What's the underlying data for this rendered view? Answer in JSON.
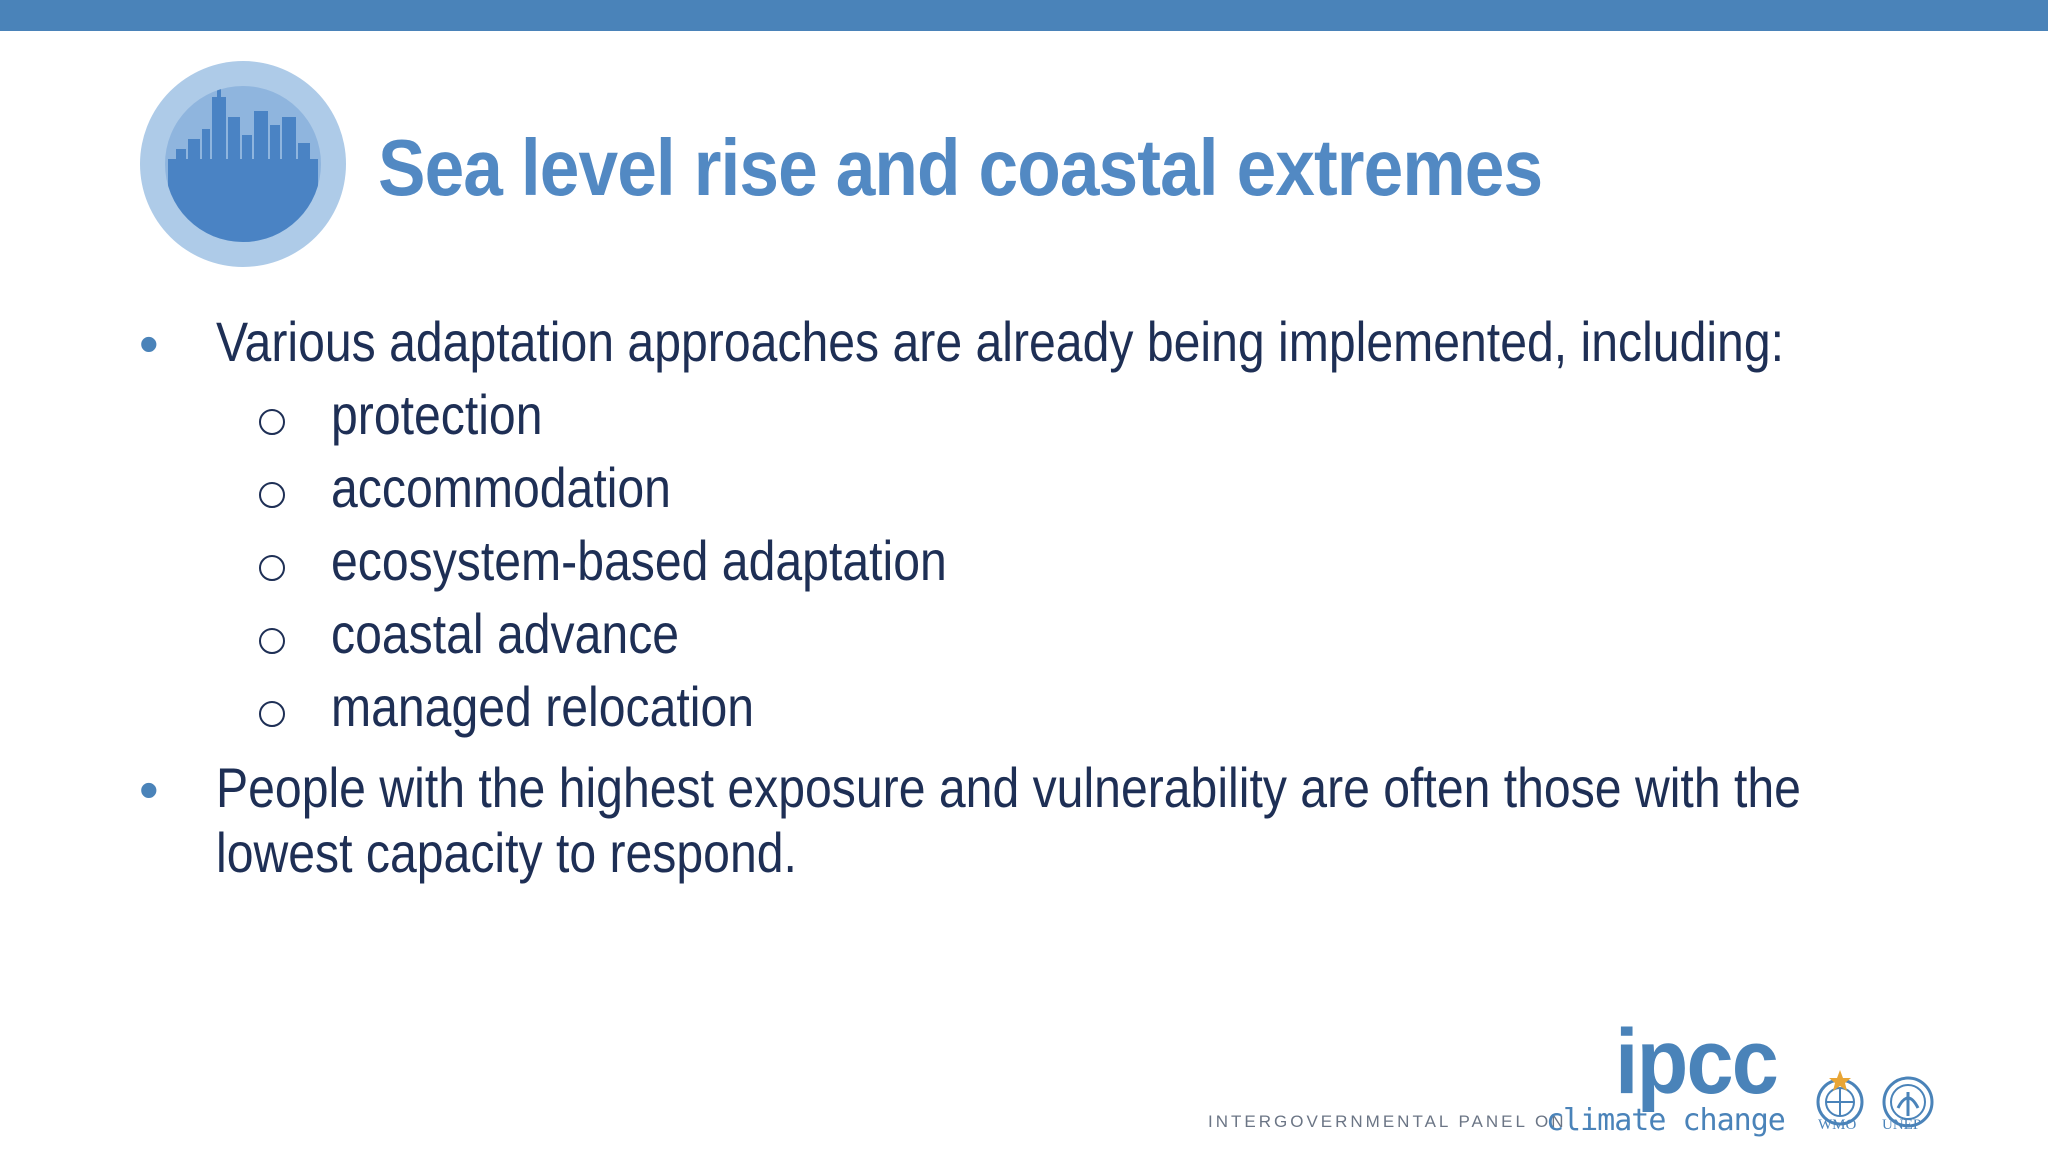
{
  "slide": {
    "title": "Sea level rise and coastal extremes",
    "bullets": [
      {
        "text": "Various adaptation approaches are already being implemented, including:",
        "subitems": [
          "protection",
          "accommodation",
          "ecosystem-based adaptation",
          "coastal advance",
          "managed relocation"
        ]
      },
      {
        "text_line1": "People with the highest exposure and vulnerability are often those with the",
        "text_line2": "lowest capacity to respond."
      }
    ]
  },
  "footer": {
    "org_acronym": "ipcc",
    "org_full_prefix": "INTERGOVERNMENTAL PANEL ON",
    "org_full_suffix": "climate change",
    "partner_wmo": "WMO",
    "partner_unep": "UNEP"
  },
  "icons": {
    "chapter_icon": "city-skyline-icon",
    "bullet_marker": "filled-dot",
    "sub_marker": "hollow-circle"
  },
  "colors": {
    "top_bar": "#4a83b9",
    "title": "#5289c3",
    "body_text": "#1e2f55",
    "bullet": "#4a83b9"
  }
}
